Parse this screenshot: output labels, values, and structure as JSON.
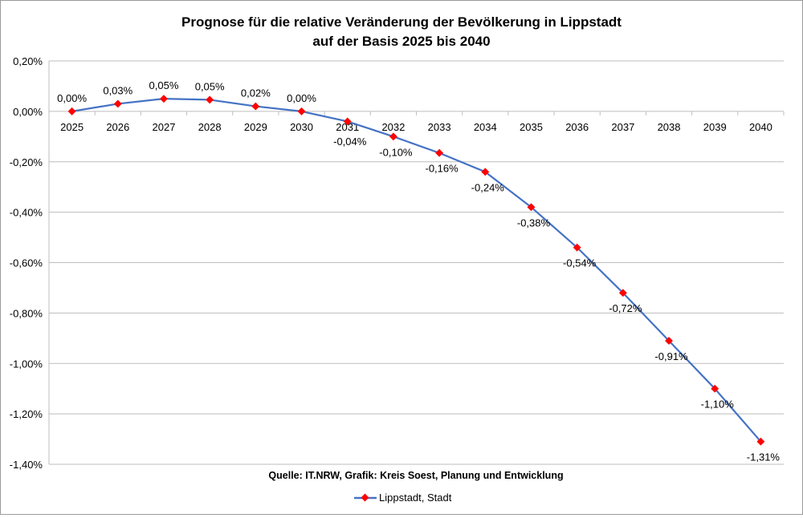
{
  "chart_data": {
    "type": "line",
    "title_line1": "Prognose für die relative Veränderung der Bevölkerung in Lippstadt",
    "title_line2": "auf der Basis 2025 bis 2040",
    "source": "Quelle: IT.NRW, Grafik: Kreis Soest, Planung und Entwicklung",
    "categories": [
      "2025",
      "2026",
      "2027",
      "2028",
      "2029",
      "2030",
      "2031",
      "2032",
      "2033",
      "2034",
      "2035",
      "2036",
      "2037",
      "2038",
      "2039",
      "2040"
    ],
    "series": [
      {
        "name": "Lippstadt, Stadt",
        "values": [
          0.0,
          0.03,
          0.05,
          0.046,
          0.02,
          0.0,
          -0.04,
          -0.1,
          -0.165,
          -0.24,
          -0.38,
          -0.54,
          -0.72,
          -0.91,
          -1.1,
          -1.31
        ],
        "labels": [
          "0,00%",
          "0,03%",
          "0,05%",
          "0,05%",
          "0,02%",
          "0,00%",
          "-0,04%",
          "-0,10%",
          "-0,16%",
          "-0,24%",
          "-0,38%",
          "-0,54%",
          "-0,72%",
          "-0,91%",
          "-1,10%",
          "-1,31%"
        ],
        "line_color": "#4472C4",
        "marker_color": "#FF0000"
      }
    ],
    "ylim": [
      -1.4,
      0.2
    ],
    "yticks": [
      "0,20%",
      "0,00%",
      "-0,20%",
      "-0,40%",
      "-0,60%",
      "-0,80%",
      "-1,00%",
      "-1,20%",
      "-1,40%"
    ],
    "ytick_values": [
      0.2,
      0,
      -0.2,
      -0.4,
      -0.6,
      -0.8,
      -1.0,
      -1.2,
      -1.4
    ],
    "grid": true,
    "legend": "bottom"
  }
}
